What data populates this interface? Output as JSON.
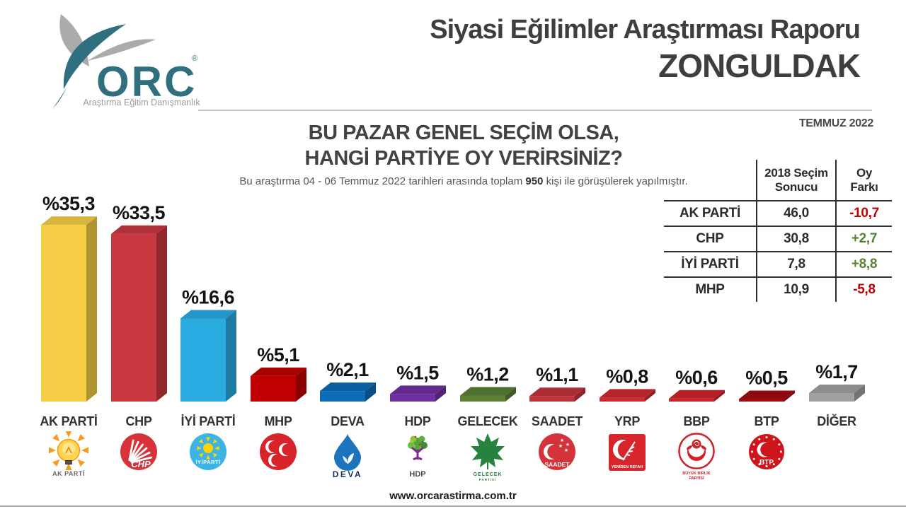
{
  "brand": {
    "name": "ORC",
    "registered_mark": "®",
    "tagline": "Araştırma Eğitim Danışmanlık",
    "teal": "#2F6F7E",
    "gray": "#ABABAB"
  },
  "header": {
    "title_line1": "Siyasi Eğilimler Araştırması Raporu",
    "title_line2": "ZONGULDAK",
    "period": "TEMMUZ 2022"
  },
  "question": {
    "line1": "BU PAZAR GENEL SEÇİM OLSA,",
    "line2": "HANGİ PARTİYE OY VERİRSİNİZ?"
  },
  "methodology": {
    "prefix": "Bu araştırma 04 - 06 Temmuz 2022 tarihleri arasında toplam ",
    "sample_size": "950",
    "suffix": " kişi ile görüşülerek yapılmıştır."
  },
  "comparison_table": {
    "col1_header": "2018 Seçim Sonucu",
    "col2_header": "Oy Farkı",
    "negative_color": "#C00000",
    "positive_color": "#568233",
    "rows": [
      {
        "party": "AK PARTİ",
        "result_2018": "46,0",
        "diff": "-10,7"
      },
      {
        "party": "CHP",
        "result_2018": "30,8",
        "diff": "+2,7"
      },
      {
        "party": "İYİ PARTİ",
        "result_2018": "7,8",
        "diff": "+8,8"
      },
      {
        "party": "MHP",
        "result_2018": "10,9",
        "diff": "-5,8"
      }
    ]
  },
  "chart_data": {
    "type": "bar",
    "unit": "percent",
    "title": "BU PAZAR GENEL SEÇİM OLSA, HANGİ PARTİYE OY VERİRSİNİZ?",
    "categories": [
      "AK PARTİ",
      "CHP",
      "İYİ PARTİ",
      "MHP",
      "DEVA",
      "HDP",
      "GELECEK",
      "SAADET",
      "YRP",
      "BBP",
      "BTP",
      "DİĞER"
    ],
    "values": [
      35.3,
      33.5,
      16.6,
      5.1,
      2.1,
      1.5,
      1.2,
      1.1,
      0.8,
      0.6,
      0.5,
      1.7
    ],
    "value_labels": [
      "%35,3",
      "%33,5",
      "%16,6",
      "%5,1",
      "%2,1",
      "%1,5",
      "%1,2",
      "%1,1",
      "%0,8",
      "%0,6",
      "%0,5",
      "%1,7"
    ],
    "bar_colors": [
      "#F6CE46",
      "#C8383E",
      "#29ABE2",
      "#C00000",
      "#0C6CB5",
      "#7030A0",
      "#5B7F35",
      "#C0353B",
      "#CE2B31",
      "#CC2229",
      "#A30B12",
      "#A0A0A0"
    ],
    "logo_ids": [
      "akparti",
      "chp",
      "iyi",
      "mhp",
      "deva",
      "hdp",
      "gelecek",
      "saadet",
      "yrp",
      "bbp",
      "btp",
      ""
    ],
    "logo_texts": [
      "AK PARTİ",
      "CHP",
      "İYİPARTİ",
      "",
      "DEVA",
      "HDP",
      "GELECEK PARTİSİ",
      "SAADET",
      "YENİDEN REFAH",
      "BÜYÜK BİRLİK PARTİSİ",
      "BTP",
      ""
    ],
    "ylim": [
      0,
      40
    ],
    "grid": false,
    "legend": "none"
  },
  "footer": {
    "website": "www.orcarastirma.com.tr"
  }
}
